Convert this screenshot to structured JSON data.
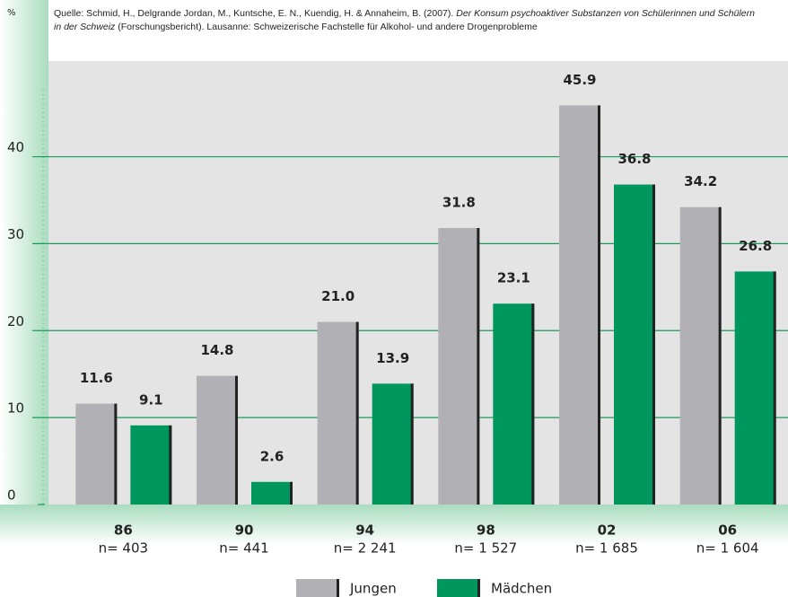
{
  "chart_data": {
    "type": "bar",
    "y_label": "%",
    "source": {
      "prefix": "Quelle: Schmid, H., Delgrande Jordan, M., Kuntsche, E. N., Kuendig, H. & Annaheim, B. (2007). ",
      "title": "Der Konsum psychoaktiver Substanzen von Schülerinnen und Schülern in der Schweiz",
      "suffix": " (Forschungsbericht). Lausanne: Schweizerische Fachstelle für Alkohol- und andere Drogenprobleme"
    },
    "categories": [
      "86",
      "90",
      "94",
      "98",
      "02",
      "06"
    ],
    "sample_sizes": [
      "n= 403",
      "n= 441",
      "n= 2 241",
      "n= 1 527",
      "n= 1 685",
      "n= 1 604"
    ],
    "series": [
      {
        "name": "Jungen",
        "color": "#b1b1b5",
        "values": [
          11.6,
          14.8,
          21.0,
          31.8,
          45.9,
          34.2
        ],
        "value_labels": [
          "11.6",
          "14.8",
          "21.0",
          "31.8",
          "45.9",
          "34.2"
        ]
      },
      {
        "name": "Mädchen",
        "color": "#00975f",
        "values": [
          9.1,
          2.6,
          13.9,
          23.1,
          36.8,
          26.8
        ],
        "value_labels": [
          "9.1",
          "2.6",
          "13.9",
          "23.1",
          "36.8",
          "26.8"
        ]
      }
    ],
    "ylim": [
      0,
      51
    ],
    "yticks": [
      0,
      10,
      20,
      30,
      40
    ],
    "grid": true
  }
}
